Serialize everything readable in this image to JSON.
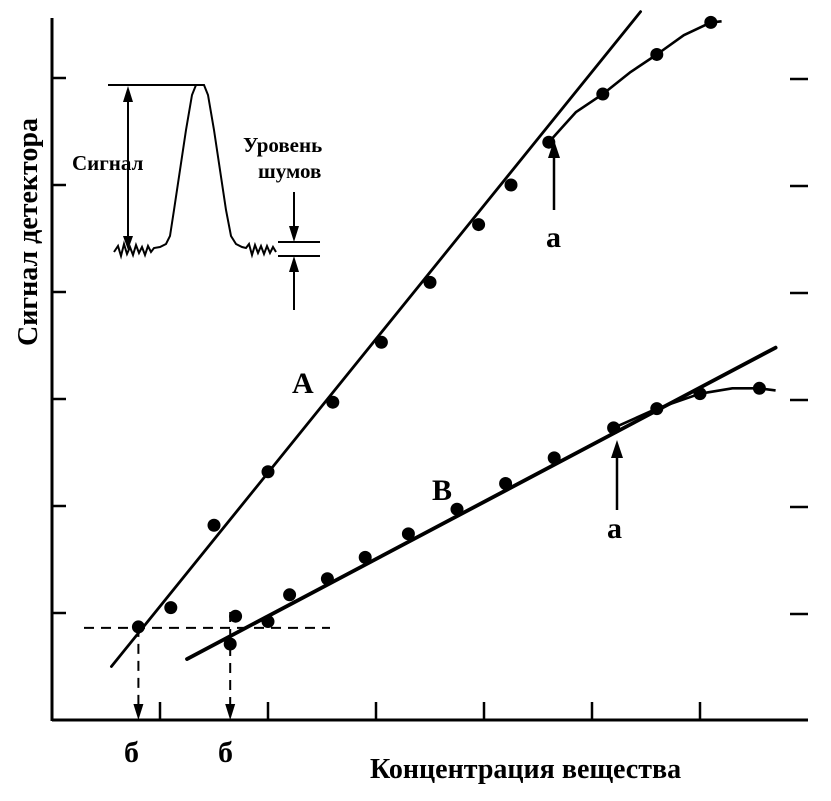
{
  "chart_data": {
    "type": "scatter",
    "title": "",
    "xlabel": "Концентрация вещества",
    "ylabel": "Сигнал детектора",
    "xlim": [
      0,
      7.2
    ],
    "ylim": [
      0,
      6.5
    ],
    "x_ticks": [
      1,
      2,
      3,
      4,
      5,
      6
    ],
    "y_ticks": [
      1,
      2,
      3,
      4,
      5,
      6
    ],
    "series": [
      {
        "name": "A",
        "points": [
          {
            "x": 0.8,
            "y": 0.87
          },
          {
            "x": 1.1,
            "y": 1.05
          },
          {
            "x": 1.5,
            "y": 1.82
          },
          {
            "x": 2.0,
            "y": 2.32
          },
          {
            "x": 2.6,
            "y": 2.97
          },
          {
            "x": 3.05,
            "y": 3.53
          },
          {
            "x": 3.5,
            "y": 4.09
          },
          {
            "x": 3.95,
            "y": 4.63
          },
          {
            "x": 4.25,
            "y": 5.0
          },
          {
            "x": 4.6,
            "y": 5.4
          },
          {
            "x": 5.1,
            "y": 5.85
          },
          {
            "x": 5.6,
            "y": 6.22
          },
          {
            "x": 6.1,
            "y": 6.52
          }
        ],
        "fit_line": [
          [
            0.55,
            0.5
          ],
          [
            5.45,
            6.62
          ]
        ],
        "curve": [
          [
            4.6,
            5.4
          ],
          [
            4.85,
            5.68
          ],
          [
            5.1,
            5.85
          ],
          [
            5.35,
            6.05
          ],
          [
            5.6,
            6.22
          ],
          [
            5.85,
            6.4
          ],
          [
            6.1,
            6.52
          ],
          [
            6.2,
            6.53
          ]
        ]
      },
      {
        "name": "B",
        "points": [
          {
            "x": 1.65,
            "y": 0.71
          },
          {
            "x": 1.7,
            "y": 0.97
          },
          {
            "x": 2.0,
            "y": 0.92
          },
          {
            "x": 2.2,
            "y": 1.17
          },
          {
            "x": 2.55,
            "y": 1.32
          },
          {
            "x": 2.9,
            "y": 1.52
          },
          {
            "x": 3.3,
            "y": 1.74
          },
          {
            "x": 3.75,
            "y": 1.97
          },
          {
            "x": 4.2,
            "y": 2.21
          },
          {
            "x": 4.65,
            "y": 2.45
          },
          {
            "x": 5.2,
            "y": 2.73
          },
          {
            "x": 5.6,
            "y": 2.91
          },
          {
            "x": 6.0,
            "y": 3.05
          },
          {
            "x": 6.55,
            "y": 3.1
          }
        ],
        "fit_line": [
          [
            1.25,
            0.57
          ],
          [
            6.7,
            3.48
          ]
        ],
        "curve": [
          [
            5.2,
            2.73
          ],
          [
            5.6,
            2.91
          ],
          [
            6.0,
            3.05
          ],
          [
            6.3,
            3.1
          ],
          [
            6.55,
            3.1
          ],
          [
            6.7,
            3.08
          ]
        ]
      }
    ],
    "annotations": {
      "line_A_label": "A",
      "line_B_label": "B",
      "limit_A_label": "а",
      "limit_B_label": "а",
      "detection_A_label": "б",
      "detection_B_label": "б",
      "limit_A": {
        "x": 4.6,
        "y": 5.4
      },
      "limit_B": {
        "x": 5.2,
        "y": 2.73
      },
      "detection_A": {
        "x": 0.8,
        "y": 0.87
      },
      "detection_B": {
        "x": 1.65,
        "y": 0.87
      }
    },
    "inset": {
      "signal_label": "Сигнал",
      "noise_label_line1": "Уровень",
      "noise_label_line2": "шумов"
    }
  }
}
